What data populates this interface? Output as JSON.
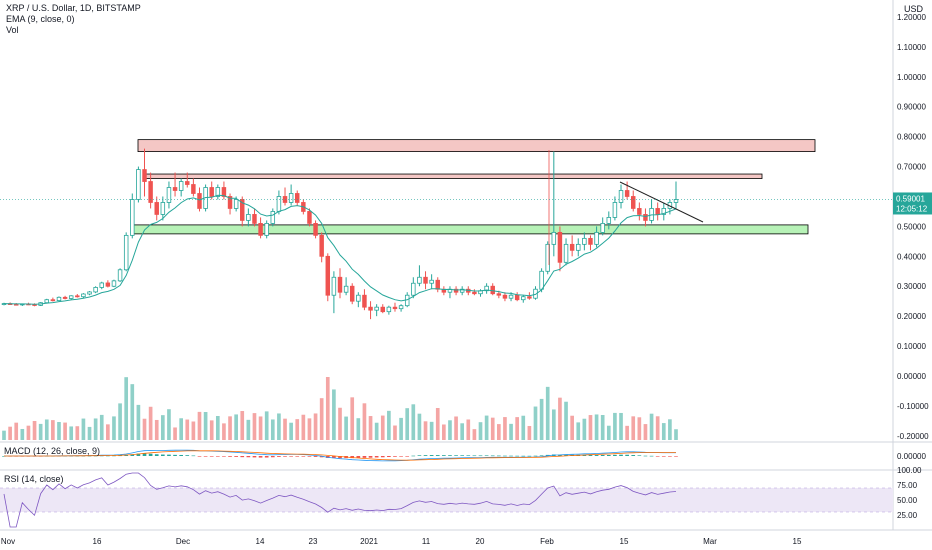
{
  "header": {
    "symbol_line": "XRP / U.S. Dollar, 1D, BITSTAMP",
    "ema_line": "EMA (9, close, 0)",
    "vol_line": "Vol",
    "currency": "USD"
  },
  "macd_title": "MACD (12, 26, close, 9)",
  "rsi_title": "RSI (14, close)",
  "price_badge": {
    "price": "0.59001",
    "countdown": "12:05:12",
    "color": "#26a69a"
  },
  "colors": {
    "up": "#26a69a",
    "down": "#ef5350",
    "ema": "#26a69a",
    "vol_up": "#8fd0c8",
    "vol_down": "#f4a5a4",
    "macd": "#2196f3",
    "signal": "#ff6d00",
    "rsi": "#7e57c2",
    "rsi_band": "#ede7f6",
    "zone_red": "#f4c7c5",
    "zone_green": "#b7f2b7"
  },
  "chart_data": {
    "type": "candlestick",
    "price_axis": {
      "ticks": [
        "1.20000",
        "1.10000",
        "1.00000",
        "0.90000",
        "0.80000",
        "0.70000",
        "0.60000",
        "0.50000",
        "0.40000",
        "0.30000",
        "0.20000",
        "0.10000",
        "0.00000",
        "-0.10000",
        "-0.20000"
      ]
    },
    "macd_axis": {
      "ticks": [
        "0.00000"
      ]
    },
    "rsi_axis": {
      "ticks": [
        "100.00",
        "75.00",
        "50.00",
        "25.00"
      ]
    },
    "x_ticks": [
      "Nov",
      "16",
      "Dec",
      "14",
      "23",
      "2021",
      "11",
      "20",
      "Feb",
      "15",
      "Mar",
      "15"
    ],
    "candles": [
      [
        0.24,
        0.245,
        0.236,
        0.242
      ],
      [
        0.242,
        0.246,
        0.238,
        0.24
      ],
      [
        0.24,
        0.244,
        0.236,
        0.238
      ],
      [
        0.238,
        0.242,
        0.234,
        0.241
      ],
      [
        0.241,
        0.245,
        0.237,
        0.239
      ],
      [
        0.239,
        0.243,
        0.233,
        0.236
      ],
      [
        0.236,
        0.247,
        0.234,
        0.245
      ],
      [
        0.245,
        0.258,
        0.242,
        0.255
      ],
      [
        0.255,
        0.262,
        0.249,
        0.252
      ],
      [
        0.252,
        0.266,
        0.25,
        0.263
      ],
      [
        0.263,
        0.268,
        0.256,
        0.259
      ],
      [
        0.259,
        0.27,
        0.254,
        0.268
      ],
      [
        0.268,
        0.274,
        0.262,
        0.265
      ],
      [
        0.265,
        0.277,
        0.26,
        0.274
      ],
      [
        0.274,
        0.284,
        0.27,
        0.281
      ],
      [
        0.281,
        0.3,
        0.277,
        0.296
      ],
      [
        0.296,
        0.315,
        0.29,
        0.311
      ],
      [
        0.311,
        0.32,
        0.296,
        0.3
      ],
      [
        0.3,
        0.322,
        0.297,
        0.318
      ],
      [
        0.318,
        0.36,
        0.314,
        0.355
      ],
      [
        0.355,
        0.48,
        0.35,
        0.47
      ],
      [
        0.47,
        0.61,
        0.46,
        0.59
      ],
      [
        0.59,
        0.7,
        0.58,
        0.69
      ],
      [
        0.69,
        0.76,
        0.6,
        0.65
      ],
      [
        0.65,
        0.68,
        0.56,
        0.58
      ],
      [
        0.58,
        0.6,
        0.52,
        0.54
      ],
      [
        0.54,
        0.6,
        0.52,
        0.58
      ],
      [
        0.58,
        0.65,
        0.56,
        0.63
      ],
      [
        0.63,
        0.68,
        0.6,
        0.62
      ],
      [
        0.62,
        0.66,
        0.6,
        0.65
      ],
      [
        0.65,
        0.68,
        0.63,
        0.64
      ],
      [
        0.64,
        0.66,
        0.6,
        0.61
      ],
      [
        0.61,
        0.63,
        0.55,
        0.56
      ],
      [
        0.56,
        0.64,
        0.55,
        0.63
      ],
      [
        0.63,
        0.65,
        0.59,
        0.6
      ],
      [
        0.6,
        0.64,
        0.59,
        0.63
      ],
      [
        0.63,
        0.65,
        0.59,
        0.6
      ],
      [
        0.6,
        0.61,
        0.54,
        0.56
      ],
      [
        0.56,
        0.6,
        0.55,
        0.59
      ],
      [
        0.59,
        0.6,
        0.5,
        0.52
      ],
      [
        0.52,
        0.56,
        0.5,
        0.54
      ],
      [
        0.54,
        0.56,
        0.5,
        0.51
      ],
      [
        0.51,
        0.53,
        0.46,
        0.47
      ],
      [
        0.47,
        0.52,
        0.46,
        0.51
      ],
      [
        0.51,
        0.56,
        0.5,
        0.55
      ],
      [
        0.55,
        0.62,
        0.54,
        0.6
      ],
      [
        0.6,
        0.63,
        0.57,
        0.58
      ],
      [
        0.58,
        0.64,
        0.57,
        0.61
      ],
      [
        0.61,
        0.62,
        0.57,
        0.58
      ],
      [
        0.58,
        0.59,
        0.54,
        0.55
      ],
      [
        0.55,
        0.56,
        0.5,
        0.51
      ],
      [
        0.51,
        0.52,
        0.46,
        0.47
      ],
      [
        0.47,
        0.48,
        0.38,
        0.4
      ],
      [
        0.4,
        0.41,
        0.25,
        0.27
      ],
      [
        0.27,
        0.35,
        0.21,
        0.33
      ],
      [
        0.33,
        0.36,
        0.26,
        0.28
      ],
      [
        0.28,
        0.33,
        0.27,
        0.3
      ],
      [
        0.3,
        0.31,
        0.24,
        0.25
      ],
      [
        0.25,
        0.28,
        0.23,
        0.27
      ],
      [
        0.27,
        0.29,
        0.22,
        0.23
      ],
      [
        0.23,
        0.25,
        0.19,
        0.22
      ],
      [
        0.22,
        0.24,
        0.2,
        0.23
      ],
      [
        0.23,
        0.24,
        0.21,
        0.215
      ],
      [
        0.215,
        0.235,
        0.205,
        0.23
      ],
      [
        0.23,
        0.245,
        0.215,
        0.225
      ],
      [
        0.225,
        0.24,
        0.215,
        0.235
      ],
      [
        0.235,
        0.28,
        0.23,
        0.27
      ],
      [
        0.27,
        0.33,
        0.26,
        0.31
      ],
      [
        0.31,
        0.37,
        0.3,
        0.33
      ],
      [
        0.33,
        0.35,
        0.29,
        0.31
      ],
      [
        0.31,
        0.34,
        0.29,
        0.32
      ],
      [
        0.32,
        0.33,
        0.28,
        0.29
      ],
      [
        0.29,
        0.3,
        0.27,
        0.28
      ],
      [
        0.28,
        0.3,
        0.26,
        0.29
      ],
      [
        0.29,
        0.3,
        0.27,
        0.28
      ],
      [
        0.28,
        0.3,
        0.27,
        0.29
      ],
      [
        0.29,
        0.3,
        0.27,
        0.28
      ],
      [
        0.28,
        0.29,
        0.27,
        0.275
      ],
      [
        0.275,
        0.29,
        0.265,
        0.285
      ],
      [
        0.285,
        0.31,
        0.275,
        0.3
      ],
      [
        0.3,
        0.31,
        0.27,
        0.275
      ],
      [
        0.275,
        0.285,
        0.26,
        0.27
      ],
      [
        0.27,
        0.28,
        0.25,
        0.26
      ],
      [
        0.26,
        0.28,
        0.25,
        0.27
      ],
      [
        0.27,
        0.28,
        0.25,
        0.255
      ],
      [
        0.255,
        0.27,
        0.245,
        0.265
      ],
      [
        0.265,
        0.28,
        0.255,
        0.26
      ],
      [
        0.26,
        0.3,
        0.255,
        0.29
      ],
      [
        0.29,
        0.36,
        0.28,
        0.35
      ],
      [
        0.35,
        0.45,
        0.34,
        0.44
      ],
      [
        0.44,
        0.75,
        0.4,
        0.48
      ],
      [
        0.48,
        0.5,
        0.35,
        0.38
      ],
      [
        0.38,
        0.46,
        0.37,
        0.44
      ],
      [
        0.44,
        0.47,
        0.4,
        0.42
      ],
      [
        0.42,
        0.46,
        0.4,
        0.44
      ],
      [
        0.44,
        0.48,
        0.42,
        0.46
      ],
      [
        0.46,
        0.47,
        0.42,
        0.44
      ],
      [
        0.44,
        0.5,
        0.43,
        0.48
      ],
      [
        0.48,
        0.53,
        0.47,
        0.51
      ],
      [
        0.51,
        0.55,
        0.49,
        0.53
      ],
      [
        0.53,
        0.6,
        0.52,
        0.58
      ],
      [
        0.58,
        0.64,
        0.56,
        0.62
      ],
      [
        0.62,
        0.65,
        0.59,
        0.6
      ],
      [
        0.6,
        0.62,
        0.55,
        0.56
      ],
      [
        0.56,
        0.58,
        0.52,
        0.54
      ],
      [
        0.54,
        0.56,
        0.5,
        0.52
      ],
      [
        0.52,
        0.59,
        0.51,
        0.56
      ],
      [
        0.56,
        0.58,
        0.52,
        0.54
      ],
      [
        0.54,
        0.58,
        0.52,
        0.56
      ],
      [
        0.56,
        0.59,
        0.54,
        0.58
      ],
      [
        0.58,
        0.65,
        0.56,
        0.59
      ]
    ],
    "zones": [
      {
        "color": "red",
        "from": 0.75,
        "to": 0.79
      },
      {
        "color": "red",
        "from": 0.66,
        "to": 0.675
      },
      {
        "color": "green",
        "from": 0.475,
        "to": 0.505
      }
    ]
  }
}
